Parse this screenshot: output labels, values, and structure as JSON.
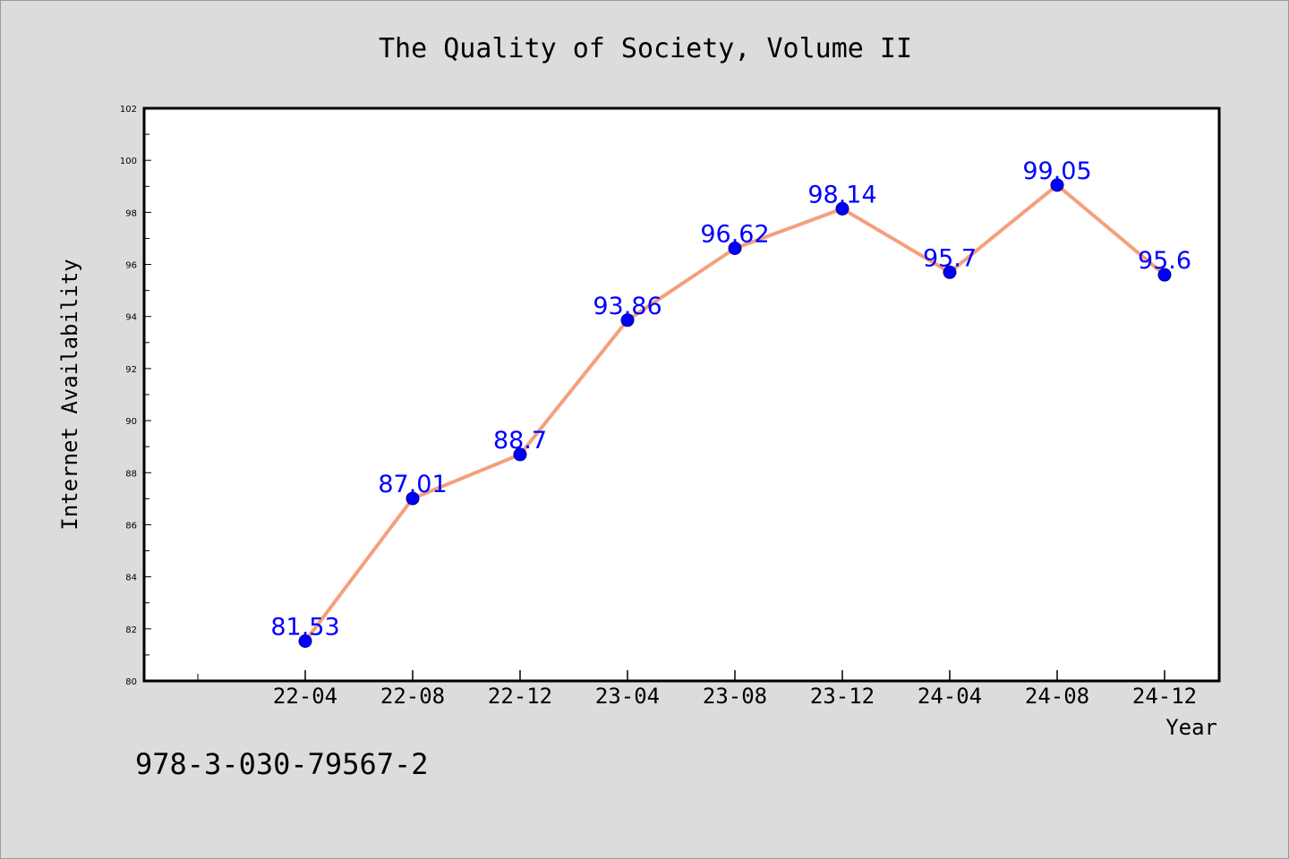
{
  "chart_data": {
    "type": "line",
    "title": "The Quality of Society, Volume II",
    "xlabel": "Year",
    "ylabel": "Internet Availability",
    "categories": [
      "22-04",
      "22-08",
      "22-12",
      "23-04",
      "23-08",
      "23-12",
      "24-04",
      "24-08",
      "24-12"
    ],
    "values": [
      81.53,
      87.01,
      88.7,
      93.86,
      96.62,
      98.14,
      95.7,
      99.05,
      95.6
    ],
    "data_labels": [
      "81.53",
      "87.01",
      "88.7",
      "93.86",
      "96.62",
      "98.14",
      "95.7",
      "99.05",
      "95.6"
    ],
    "ylim": [
      80,
      102
    ],
    "y_ticks": [
      80,
      82,
      84,
      86,
      88,
      90,
      92,
      94,
      96,
      98,
      100,
      102
    ],
    "grid": false,
    "line_color": "#f4a07c",
    "marker_color": "#0000ff",
    "label_color": "#0000ff"
  },
  "footer": {
    "isbn": "978-3-030-79567-2"
  }
}
